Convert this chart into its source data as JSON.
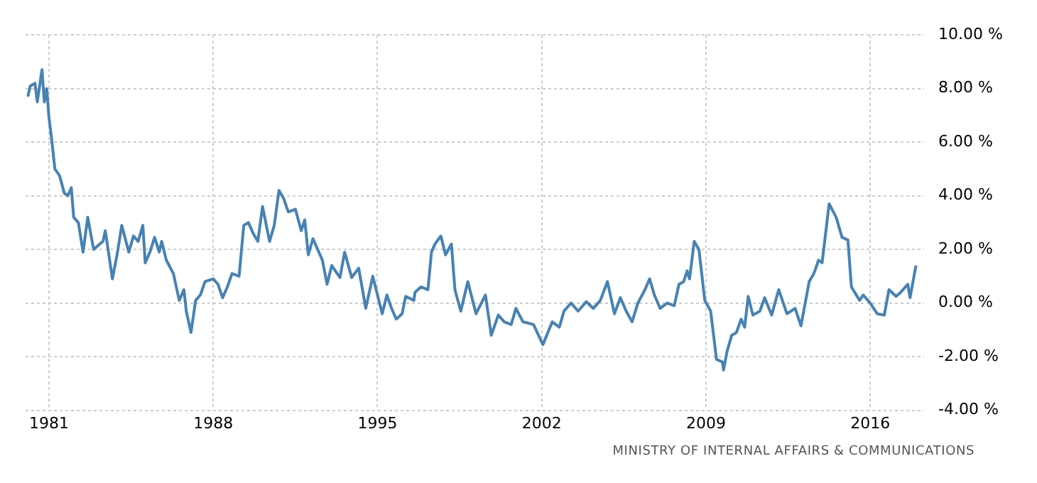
{
  "chart_data": {
    "type": "line",
    "x": [
      1980.1,
      1980.2,
      1980.4,
      1980.5,
      1980.7,
      1980.8,
      1980.9,
      1981.0,
      1981.1,
      1981.25,
      1981.45,
      1981.65,
      1981.8,
      1981.95,
      1982.05,
      1982.25,
      1982.45,
      1982.65,
      1982.9,
      1983.3,
      1983.4,
      1983.7,
      1983.9,
      1984.1,
      1984.4,
      1984.6,
      1984.8,
      1985.0,
      1985.1,
      1985.3,
      1985.5,
      1985.7,
      1985.8,
      1986.0,
      1986.3,
      1986.55,
      1986.75,
      1986.85,
      1987.05,
      1987.25,
      1987.45,
      1987.65,
      1988.0,
      1988.2,
      1988.4,
      1988.6,
      1988.8,
      1989.1,
      1989.3,
      1989.5,
      1989.7,
      1989.9,
      1990.1,
      1990.4,
      1990.6,
      1990.8,
      1991.0,
      1991.2,
      1991.5,
      1991.75,
      1991.9,
      1992.05,
      1992.25,
      1992.45,
      1992.65,
      1992.85,
      1993.05,
      1993.4,
      1993.6,
      1993.9,
      1994.2,
      1994.5,
      1994.8,
      1995.2,
      1995.4,
      1995.6,
      1995.8,
      1996.05,
      1996.2,
      1996.55,
      1996.6,
      1996.85,
      1997.15,
      1997.3,
      1997.45,
      1997.7,
      1997.9,
      1998.15,
      1998.3,
      1998.55,
      1998.85,
      1999.2,
      1999.6,
      1999.85,
      2000.15,
      2000.4,
      2000.7,
      2000.9,
      2001.2,
      2001.65,
      2002.05,
      2002.45,
      2002.75,
      2002.95,
      2003.25,
      2003.55,
      2003.9,
      2004.2,
      2004.5,
      2004.8,
      2005.1,
      2005.35,
      2005.6,
      2005.85,
      2006.1,
      2006.4,
      2006.6,
      2006.8,
      2007.05,
      2007.35,
      2007.65,
      2007.85,
      2008.05,
      2008.2,
      2008.3,
      2008.5,
      2008.7,
      2008.95,
      2009.2,
      2009.45,
      2009.7,
      2009.75,
      2009.9,
      2010.1,
      2010.3,
      2010.5,
      2010.65,
      2010.8,
      2011.0,
      2011.3,
      2011.5,
      2011.8,
      2012.1,
      2012.45,
      2012.8,
      2013.05,
      2013.4,
      2013.6,
      2013.8,
      2013.95,
      2014.25,
      2014.55,
      2014.8,
      2015.05,
      2015.2,
      2015.55,
      2015.7,
      2016.0,
      2016.3,
      2016.6,
      2016.8,
      2017.1,
      2017.3,
      2017.6,
      2017.7,
      2017.95
    ],
    "series": [
      {
        "color": "#4682b4",
        "values": [
          7.7,
          8.1,
          8.2,
          7.5,
          8.7,
          7.5,
          8.0,
          6.9,
          6.2,
          5.0,
          4.75,
          4.1,
          4.0,
          4.3,
          3.2,
          3.0,
          1.9,
          3.2,
          2.0,
          2.3,
          2.7,
          0.9,
          1.8,
          2.9,
          1.9,
          2.5,
          2.3,
          2.9,
          1.5,
          1.9,
          2.45,
          1.9,
          2.3,
          1.6,
          1.1,
          0.1,
          0.5,
          -0.3,
          -1.1,
          0.1,
          0.3,
          0.8,
          0.9,
          0.7,
          0.2,
          0.6,
          1.1,
          1.0,
          2.9,
          3.0,
          2.6,
          2.3,
          3.6,
          2.3,
          2.9,
          4.2,
          3.9,
          3.4,
          3.5,
          2.7,
          3.1,
          1.8,
          2.4,
          2.0,
          1.6,
          0.7,
          1.4,
          0.95,
          1.9,
          0.95,
          1.3,
          -0.2,
          1.0,
          -0.4,
          0.3,
          -0.2,
          -0.6,
          -0.4,
          0.25,
          0.1,
          0.4,
          0.6,
          0.5,
          1.9,
          2.2,
          2.5,
          1.8,
          2.2,
          0.5,
          -0.3,
          0.8,
          -0.4,
          0.3,
          -1.2,
          -0.45,
          -0.7,
          -0.8,
          -0.2,
          -0.7,
          -0.8,
          -1.55,
          -0.7,
          -0.9,
          -0.3,
          0.0,
          -0.3,
          0.05,
          -0.2,
          0.1,
          0.8,
          -0.4,
          0.2,
          -0.3,
          -0.7,
          0.0,
          0.5,
          0.9,
          0.3,
          -0.2,
          0.0,
          -0.1,
          0.7,
          0.8,
          1.2,
          0.9,
          2.3,
          2.0,
          0.1,
          -0.3,
          -2.1,
          -2.2,
          -2.5,
          -1.8,
          -1.2,
          -1.1,
          -0.6,
          -0.9,
          0.25,
          -0.45,
          -0.3,
          0.2,
          -0.45,
          0.5,
          -0.4,
          -0.2,
          -0.85,
          0.8,
          1.1,
          1.6,
          1.5,
          3.7,
          3.2,
          2.45,
          2.35,
          0.6,
          0.1,
          0.3,
          0.0,
          -0.4,
          -0.45,
          0.5,
          0.25,
          0.4,
          0.7,
          0.2,
          1.4
        ]
      }
    ],
    "xlim": [
      1980,
      2018.3
    ],
    "xticks": [
      1981,
      1988,
      1995,
      2002,
      2009,
      2016
    ],
    "ylim": [
      -4,
      10
    ],
    "yticks": [
      {
        "value": -4,
        "label": "-4.00 %"
      },
      {
        "value": -2,
        "label": "-2.00 %"
      },
      {
        "value": 0,
        "label": "0.00 %"
      },
      {
        "value": 2,
        "label": "2.00 %"
      },
      {
        "value": 4,
        "label": "4.00 %"
      },
      {
        "value": 6,
        "label": "6.00 %"
      },
      {
        "value": 8,
        "label": "8.00 %"
      },
      {
        "value": 10,
        "label": "10.00 %"
      }
    ],
    "grid": true,
    "marker": "none",
    "annotations": [
      "MINISTRY OF INTERNAL AFFAIRS & COMMUNICATIONS"
    ]
  }
}
